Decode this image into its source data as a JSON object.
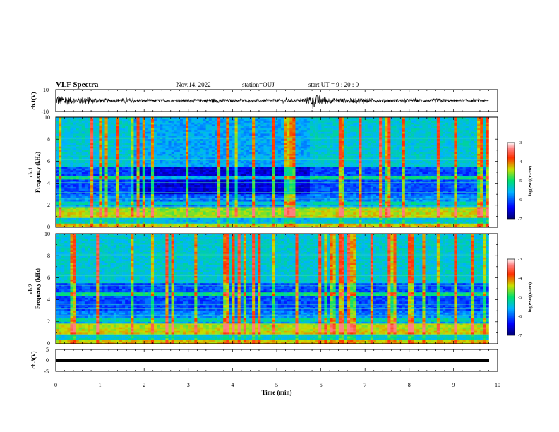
{
  "header": {
    "title": "VLF Spectra",
    "date": "Nov.14, 2022",
    "station": "station=OUJ",
    "start": "start UT =  9 : 20 : 0"
  },
  "colors": {
    "waveform": "#000000",
    "background": "#ffffff",
    "spectrogram_low": "#00007f",
    "spectrogram_mid": "#00d07a",
    "spectrogram_high": "#ff3300"
  },
  "chart_data": [
    {
      "type": "line",
      "name": "ch1-waveform",
      "ylabel": "ch.1(V)",
      "ylim": [
        -10,
        10
      ],
      "y_ticks": [
        "10",
        "-10"
      ],
      "xlim": [
        0,
        10
      ],
      "x": [
        0,
        0.05,
        0.1,
        0.2,
        0.3,
        0.5,
        0.7,
        0.8,
        1.0,
        1.3,
        1.6,
        2.0,
        2.5,
        3.0,
        3.3,
        3.6,
        4.0,
        4.5,
        5.0,
        5.5,
        5.7,
        5.85,
        6.0,
        6.2,
        6.5,
        7.0,
        7.3,
        7.5,
        8.0,
        8.5,
        8.6,
        9.0,
        9.5,
        9.8
      ],
      "y_envelope": [
        1.5,
        6,
        4,
        5,
        3,
        2.5,
        4,
        3,
        2,
        1.5,
        2.5,
        1.2,
        1.2,
        1.5,
        1.5,
        2,
        1.3,
        1.2,
        1.5,
        1.5,
        3,
        6,
        4.5,
        2.5,
        2,
        2.5,
        1.5,
        1.3,
        1.5,
        1.2,
        2,
        1.2,
        1.2,
        1.0
      ]
    },
    {
      "type": "heatmap",
      "name": "ch1-spectrogram",
      "ylabel": "ch.1\nFrequency (kHz)",
      "ylim": [
        0,
        10
      ],
      "y_ticks": [
        "0",
        "2",
        "4",
        "6",
        "8",
        "10"
      ],
      "xlim": [
        0,
        10
      ],
      "colorbar": {
        "label": "log(PSD)(V²/Hz)",
        "range": [
          -7,
          -3
        ],
        "ticks": [
          "-3",
          "-4",
          "-5",
          "-6",
          "-7"
        ]
      }
    },
    {
      "type": "heatmap",
      "name": "ch2-spectrogram",
      "ylabel": "ch.2\nFrequency (kHz)",
      "ylim": [
        0,
        10
      ],
      "y_ticks": [
        "0",
        "2",
        "4",
        "6",
        "8",
        "10"
      ],
      "xlim": [
        0,
        10
      ],
      "colorbar": {
        "label": "log(PSD)(V²/Hz)",
        "range": [
          -7,
          -3
        ],
        "ticks": [
          "-3",
          "-4",
          "-5",
          "-6",
          "-7"
        ]
      }
    },
    {
      "type": "line",
      "name": "ch3-waveform",
      "ylabel": "ch.3(V)",
      "ylim": [
        -5,
        5
      ],
      "y_ticks": [
        "5",
        "0",
        "-5"
      ],
      "xlim": [
        0,
        10
      ],
      "x": [
        0,
        9.8
      ],
      "y": [
        -1,
        -1
      ],
      "xlabel": "Time (min)",
      "x_ticks": [
        "0",
        "1",
        "2",
        "3",
        "4",
        "5",
        "6",
        "7",
        "8",
        "9",
        "10"
      ]
    }
  ],
  "labels": {
    "ch1_y": "ch.1(V)",
    "ch1f_a": "ch.1",
    "ch1f_b": "Frequency (kHz)",
    "ch2f_a": "ch.2",
    "ch2f_b": "Frequency (kHz)",
    "ch3_y": "ch.3(V)",
    "xlabel": "Time (min)",
    "cb_label": "log(PSD)(V²/Hz)"
  }
}
